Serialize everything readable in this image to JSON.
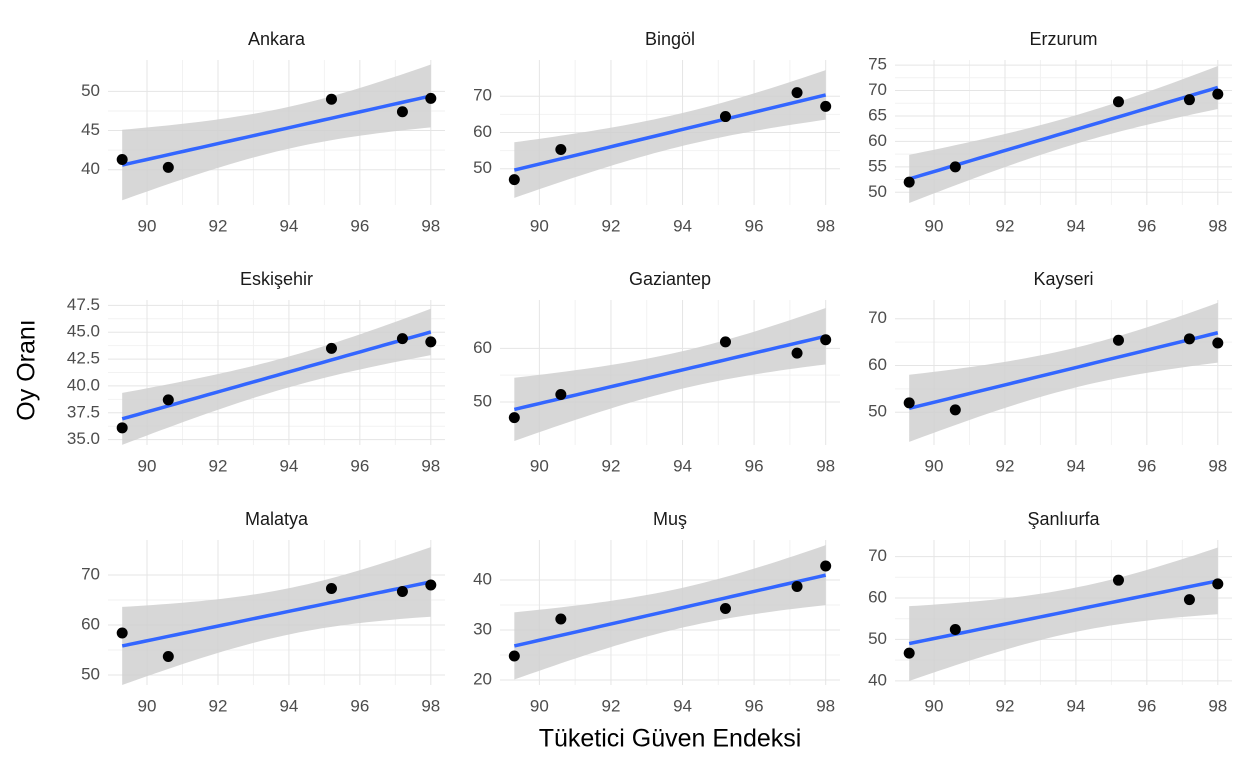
{
  "chart_data": {
    "type": "scatter",
    "xlabel": "Tüketici Güven Endeksi",
    "ylabel": "Oy Oranı",
    "x": [
      89.3,
      90.6,
      95.2,
      97.2,
      98.0
    ],
    "xlim": [
      88.9,
      98.4
    ],
    "xticks": [
      90,
      92,
      94,
      96,
      98
    ],
    "color": "#000000",
    "line_color": "#3366ff",
    "band_color": "#d0d0d0",
    "grid": true,
    "panels": [
      {
        "title": "Ankara",
        "values": [
          41.3,
          40.3,
          49,
          47.4,
          49.1
        ],
        "ylim": [
          35.5,
          54
        ],
        "yticks": [
          40,
          45,
          50
        ]
      },
      {
        "title": "Bingöl",
        "values": [
          47,
          55.3,
          64.4,
          71,
          67.2
        ],
        "ylim": [
          40,
          80
        ],
        "yticks": [
          50,
          60,
          70
        ]
      },
      {
        "title": "Erzurum",
        "values": [
          52,
          55,
          67.8,
          68.2,
          69.3
        ],
        "ylim": [
          47.5,
          76
        ],
        "yticks": [
          50,
          55,
          60,
          65,
          70,
          75
        ]
      },
      {
        "title": "Eskişehir",
        "values": [
          36.1,
          38.7,
          43.5,
          44.4,
          44.1
        ],
        "ylim": [
          34.5,
          48
        ],
        "yticks": [
          {
            "value": 35,
            "label": "35.0"
          },
          {
            "value": 37.5,
            "label": "37.5"
          },
          {
            "value": 40,
            "label": "40.0"
          },
          {
            "value": 42.5,
            "label": "42.5"
          },
          {
            "value": 45,
            "label": "45.0"
          },
          {
            "value": 47.5,
            "label": "47.5"
          }
        ]
      },
      {
        "title": "Gaziantep",
        "values": [
          47.1,
          51.4,
          61.2,
          59.1,
          61.6
        ],
        "ylim": [
          42,
          69
        ],
        "yticks": [
          50,
          60
        ]
      },
      {
        "title": "Kayseri",
        "values": [
          52,
          50.5,
          65.4,
          65.7,
          64.8
        ],
        "ylim": [
          43,
          74
        ],
        "yticks": [
          50,
          60,
          70
        ]
      },
      {
        "title": "Malatya",
        "values": [
          58.4,
          53.7,
          67.3,
          66.7,
          68
        ],
        "ylim": [
          48,
          77
        ],
        "yticks": [
          50,
          60,
          70
        ]
      },
      {
        "title": "Muş",
        "values": [
          24.8,
          32.2,
          34.3,
          38.7,
          42.8
        ],
        "ylim": [
          19,
          48
        ],
        "yticks": [
          20,
          30,
          40
        ]
      },
      {
        "title": "Şanlıurfa",
        "values": [
          46.7,
          52.4,
          64.3,
          59.6,
          63.4
        ],
        "ylim": [
          39,
          74
        ],
        "yticks": [
          40,
          50,
          60,
          70
        ]
      }
    ]
  }
}
